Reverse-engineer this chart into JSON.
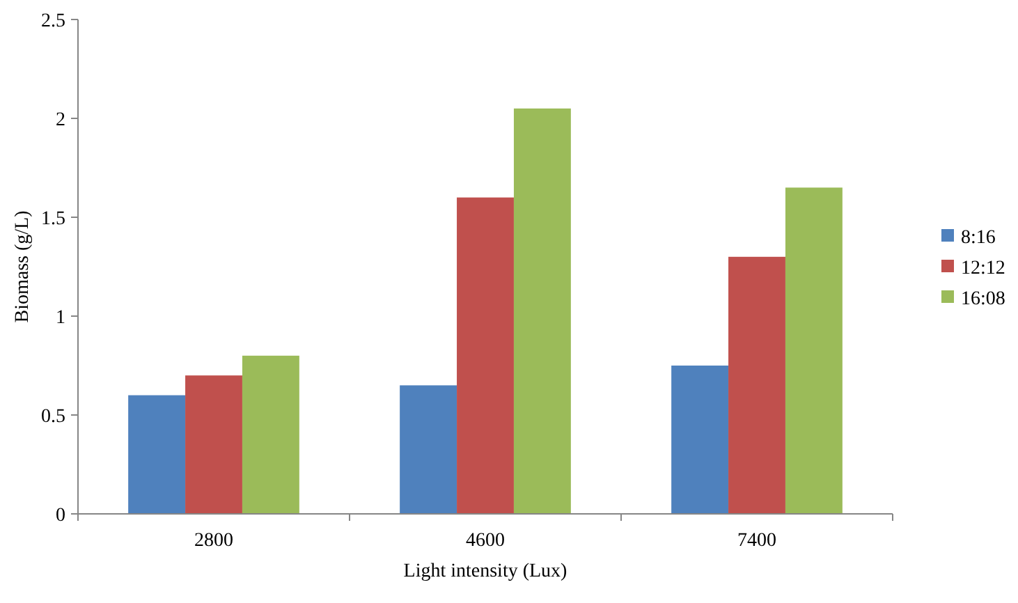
{
  "chart_data": {
    "type": "bar",
    "xlabel": "Light intensity (Lux)",
    "ylabel": "Biomass (g/L)",
    "categories": [
      "2800",
      "4600",
      "7400"
    ],
    "series": [
      {
        "name": "8:16",
        "color": "#4f81bd",
        "values": [
          0.6,
          0.65,
          0.75
        ]
      },
      {
        "name": "12:12",
        "color": "#c0504d",
        "values": [
          0.7,
          1.6,
          1.3
        ]
      },
      {
        "name": "16:08",
        "color": "#9bbb59",
        "values": [
          0.8,
          2.05,
          1.65
        ]
      }
    ],
    "ylim": [
      0,
      2.5
    ],
    "yticks": [
      0,
      0.5,
      1,
      1.5,
      2,
      2.5
    ],
    "grid": false,
    "legend": "right"
  }
}
